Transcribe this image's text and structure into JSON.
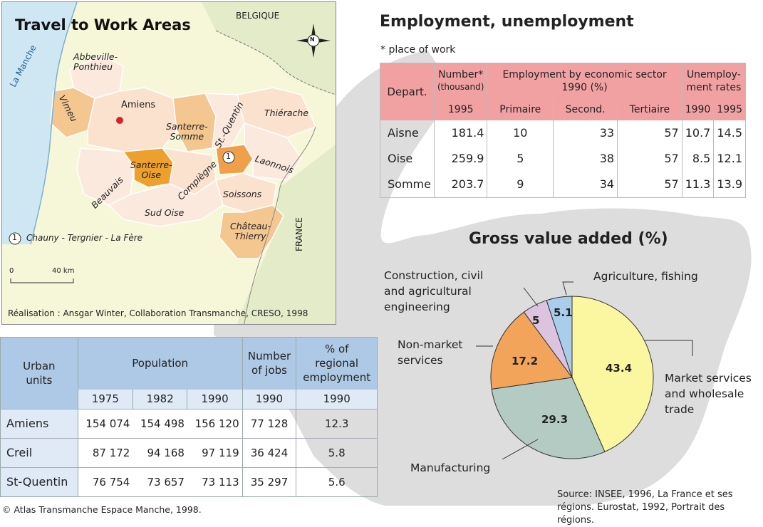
{
  "map": {
    "title": "Travel to Work Areas",
    "labels": {
      "belgique": "BELGIQUE",
      "la_manche": "La Manche",
      "france": "FRANCE",
      "amiens": "Amiens",
      "compass": "N"
    },
    "zones": {
      "abbeville": "Abbeville-\nPonthieu",
      "vimeu": "Vimeu",
      "santerre_somme": "Santerre-\nSomme",
      "st_quentin": "St.-Quentin",
      "thierache": "Thiérache",
      "santerre_oise": "Santerre-\nOise",
      "beauvais": "Beauvais",
      "compiegne": "Compiègne",
      "laonnois": "Laonnois",
      "soissons": "Soissons",
      "sud_oise": "Sud Oise",
      "chateau_thierry": "Château-\nThierry"
    },
    "legend": {
      "marker": "1",
      "text": "Chauny - Tergnier - La Fère"
    },
    "scale": {
      "zero": "0",
      "dist": "40 km"
    },
    "credit": "Réalisation : Ansgar Winter, Collaboration Transmanche, CRESO, 1998"
  },
  "employment": {
    "title": "Employment, unemployment",
    "note": "* place of work",
    "headers": {
      "depart": "Depart.",
      "number": "Number*",
      "thousand": "(thousand)",
      "sector": "Employment by economic sector 1990 (%)",
      "unemp": "Unemploy-\nment rates",
      "y1995": "1995",
      "primaire": "Primaire",
      "second": "Second.",
      "tertiaire": "Tertiaire",
      "u1990": "1990",
      "u1995": "1995"
    },
    "rows": [
      {
        "name": "Aisne",
        "number": "181.4",
        "primaire": "10",
        "second": "33",
        "tertiaire": "57",
        "u1990": "10.7",
        "u1995": "14.5"
      },
      {
        "name": "Oise",
        "number": "259.9",
        "primaire": "5",
        "second": "38",
        "tertiaire": "57",
        "u1990": "8.5",
        "u1995": "12.1"
      },
      {
        "name": "Somme",
        "number": "203.7",
        "primaire": "9",
        "second": "34",
        "tertiaire": "57",
        "u1990": "11.3",
        "u1995": "13.9"
      }
    ]
  },
  "population": {
    "headers": {
      "urban": "Urban\nunits",
      "population": "Population",
      "jobs": "Number\nof jobs",
      "pct": "% of\nregional\nemployment",
      "y1975": "1975",
      "y1982": "1982",
      "y1990": "1990",
      "j1990": "1990",
      "p1990": "1990"
    },
    "rows": [
      {
        "name": "Amiens",
        "p1975": "154 074",
        "p1982": "154 498",
        "p1990": "156 120",
        "jobs": "77 128",
        "pct": "12.3"
      },
      {
        "name": "Creil",
        "p1975": "87 172",
        "p1982": "94 168",
        "p1990": "97 119",
        "jobs": "36 424",
        "pct": "5.8"
      },
      {
        "name": "St-Quentin",
        "p1975": "76 754",
        "p1982": "73 657",
        "p1990": "73 113",
        "jobs": "35 297",
        "pct": "5.6"
      }
    ]
  },
  "gva": {
    "title": "Gross value added (%)",
    "source": "Source: INSEE, 1996, La France et ses régions. Eurostat, 1992, Portrait des régions."
  },
  "chart_data": {
    "type": "pie",
    "title": "Gross value added (%)",
    "slices": [
      {
        "name": "Market services and wholesale trade",
        "value": 43.4,
        "color": "#fbf7a0"
      },
      {
        "name": "Manufacturing",
        "value": 29.3,
        "color": "#b3cbc2"
      },
      {
        "name": "Non-market services",
        "value": 17.2,
        "color": "#f2a55a"
      },
      {
        "name": "Construction, civil and agricultural engineering",
        "value": 5.0,
        "color": "#dcc3df"
      },
      {
        "name": "Agriculture, fishing",
        "value": 5.1,
        "color": "#a9cdeb"
      }
    ],
    "legend_texts": {
      "agri": "Agriculture, fishing",
      "constr": "Construction, civil\nand agricultural\nengineering",
      "nonmarket": "Non-market\nservices",
      "market": "Market services\nand wholesale\ntrade",
      "manuf": "Manufacturing"
    }
  },
  "footer": {
    "atlas": "© Atlas Transmanche Espace Manche, 1998."
  }
}
